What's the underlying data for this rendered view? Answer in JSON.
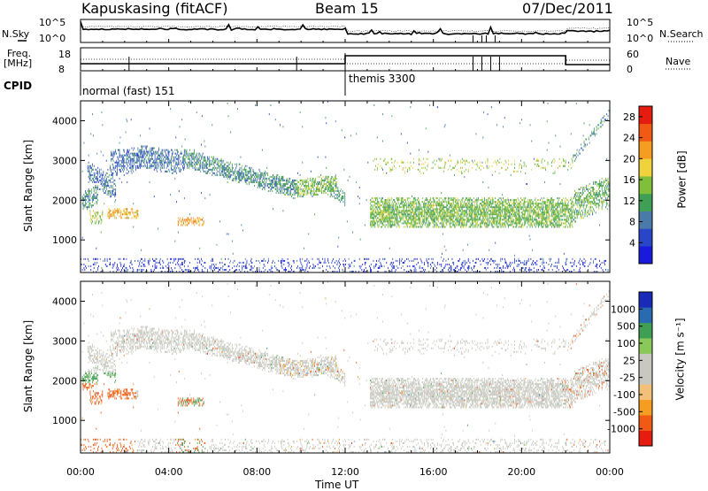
{
  "header": {
    "station": "Kapuskasing (fitACF)",
    "beam": "Beam 15",
    "date": "07/Dec/2011"
  },
  "summary": {
    "nsky_label": "N.Sky",
    "nsearch_label": "N.Search",
    "noise_ticks": [
      "10^5",
      "10^0"
    ],
    "freq_label": "Freq.",
    "freq_unit": "[MHz]",
    "freq_ticks": [
      "18",
      "8"
    ],
    "nave_label": "Nave",
    "nave_ticks": [
      "60",
      "0"
    ],
    "cpid_label": "CPID",
    "cpid_segments": [
      {
        "name": "normal (fast) 151",
        "start": "00:00",
        "end": "12:00"
      },
      {
        "name": "themis 3300",
        "start": "12:00",
        "end": "22:00"
      }
    ]
  },
  "colors": {
    "power": [
      "#1a1adc",
      "#2a46c8",
      "#4a7aa8",
      "#3f9f55",
      "#7fbf3a",
      "#f0d23c",
      "#f59d21",
      "#f05a14",
      "#e61c10"
    ],
    "velocity": [
      "#e61c10",
      "#f05a14",
      "#f59d21",
      "#f3c07a",
      "#c8c8c0",
      "#c8c8c0",
      "#8ac85a",
      "#3f9f55",
      "#2a6ab0",
      "#1a2ab8"
    ]
  },
  "chart_data": [
    {
      "type": "heatmap",
      "panel": "power",
      "xlabel": "",
      "ylabel": "Slant Range [km]",
      "x_ticks": [
        "00:00",
        "04:00",
        "08:00",
        "12:00",
        "16:00",
        "20:00",
        "00:00"
      ],
      "xlim": [
        0,
        24
      ],
      "ylim": [
        180,
        4500
      ],
      "y_ticks": [
        1000,
        2000,
        3000,
        4000
      ],
      "colorbar_label": "Power [dB]",
      "colorbar_ticks": [
        "4",
        "8",
        "12",
        "16",
        "20",
        "24",
        "28"
      ],
      "colorbar_range": [
        0,
        30
      ]
    },
    {
      "type": "heatmap",
      "panel": "velocity",
      "xlabel": "Time UT",
      "ylabel": "Slant Range [km]",
      "x_ticks": [
        "00:00",
        "04:00",
        "08:00",
        "12:00",
        "16:00",
        "20:00",
        "00:00"
      ],
      "xlim": [
        0,
        24
      ],
      "ylim": [
        180,
        4500
      ],
      "y_ticks": [
        1000,
        2000,
        3000,
        4000
      ],
      "colorbar_label": "Velocity [m s⁻¹]",
      "colorbar_ticks": [
        "1000",
        "500",
        "100",
        "25",
        "-25",
        "-100",
        "-500",
        "-1000"
      ]
    }
  ]
}
